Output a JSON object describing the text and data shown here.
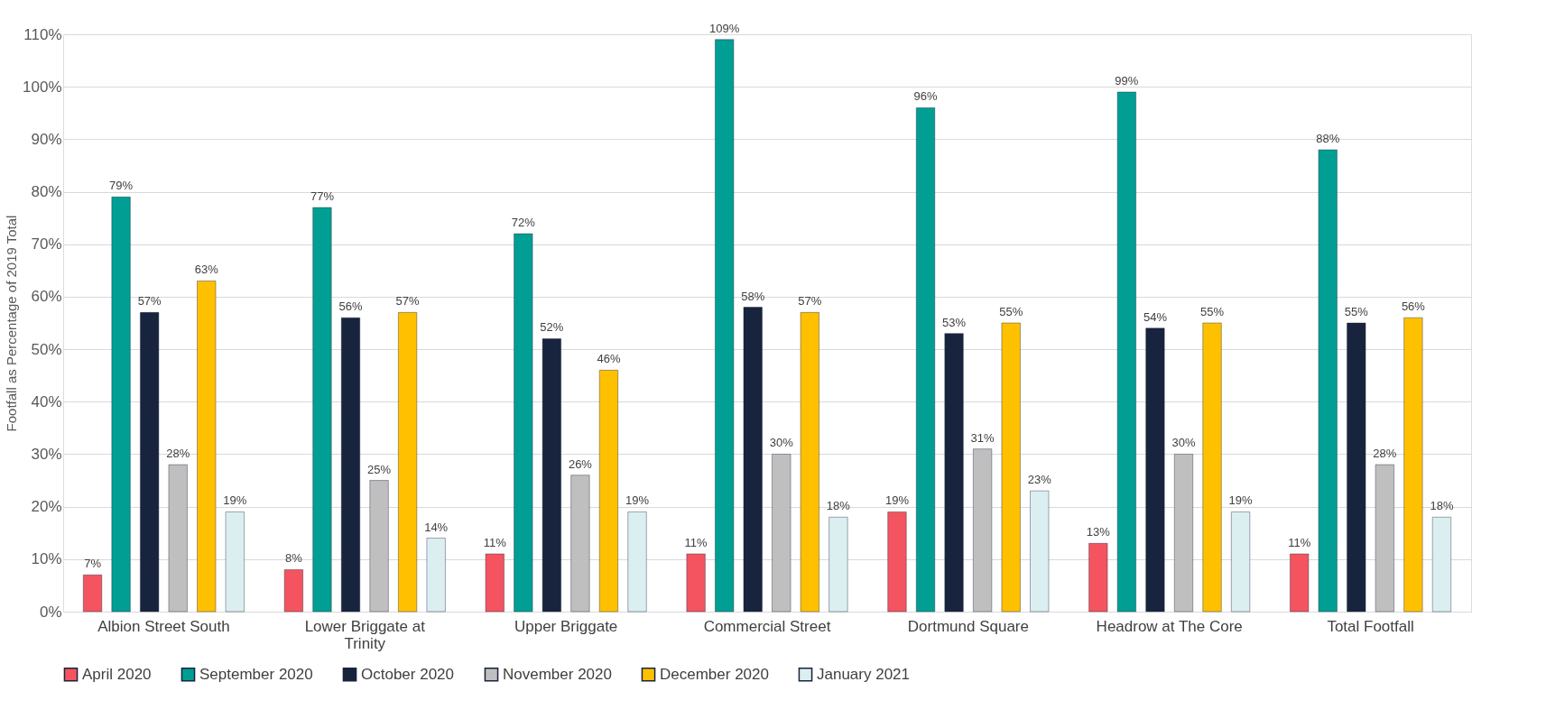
{
  "chart_data": {
    "type": "bar",
    "ylabel": "Footfall as Percentage of 2019 Total",
    "categories": [
      "Albion Street South",
      "Lower Briggate at Trinity",
      "Upper Briggate",
      "Commercial Street",
      "Dortmund Square",
      "Headrow at The Core",
      "Total Footfall"
    ],
    "series": [
      {
        "name": "April 2020",
        "color": "#f4545f",
        "values": [
          7,
          8,
          11,
          11,
          19,
          13,
          11
        ],
        "value_labels": [
          "7%",
          "8%",
          "11%",
          "11%",
          "19%",
          "13%",
          "11%"
        ]
      },
      {
        "name": "September 2020",
        "color": "#009e93",
        "values": [
          79,
          77,
          72,
          109,
          96,
          99,
          88
        ],
        "value_labels": [
          "79%",
          "77%",
          "72%",
          "109%",
          "96%",
          "99%",
          "88%"
        ]
      },
      {
        "name": "October 2020",
        "color": "#18243d",
        "values": [
          57,
          56,
          52,
          58,
          53,
          54,
          55
        ],
        "value_labels": [
          "57%",
          "56%",
          "52%",
          "58%",
          "53%",
          "54%",
          "55%"
        ]
      },
      {
        "name": "November 2020",
        "color": "#bfbfbf",
        "values": [
          28,
          25,
          26,
          30,
          31,
          30,
          28
        ],
        "value_labels": [
          "28%",
          "25%",
          "26%",
          "30%",
          "31%",
          "30%",
          "28%"
        ]
      },
      {
        "name": "December 2020",
        "color": "#ffc000",
        "values": [
          63,
          57,
          46,
          57,
          55,
          55,
          56
        ],
        "value_labels": [
          "63%",
          "57%",
          "46%",
          "57%",
          "55%",
          "55%",
          "56%"
        ]
      },
      {
        "name": "January 2021",
        "color": "#dbeff1",
        "values": [
          19,
          14,
          19,
          18,
          23,
          19,
          18
        ],
        "value_labels": [
          "19%",
          "14%",
          "19%",
          "18%",
          "23%",
          "19%",
          "18%"
        ]
      }
    ],
    "ylim": [
      0,
      110
    ],
    "yticks": [
      {
        "value": 0,
        "label": "0%"
      },
      {
        "value": 10,
        "label": "10%"
      },
      {
        "value": 20,
        "label": "20%"
      },
      {
        "value": 30,
        "label": "30%"
      },
      {
        "value": 40,
        "label": "40%"
      },
      {
        "value": 50,
        "label": "50%"
      },
      {
        "value": 60,
        "label": "60%"
      },
      {
        "value": 70,
        "label": "70%"
      },
      {
        "value": 80,
        "label": "80%"
      },
      {
        "value": 90,
        "label": "90%"
      },
      {
        "value": 100,
        "label": "100%"
      },
      {
        "value": 110,
        "label": "110%"
      }
    ],
    "grid": "y",
    "legend": "bottom"
  }
}
